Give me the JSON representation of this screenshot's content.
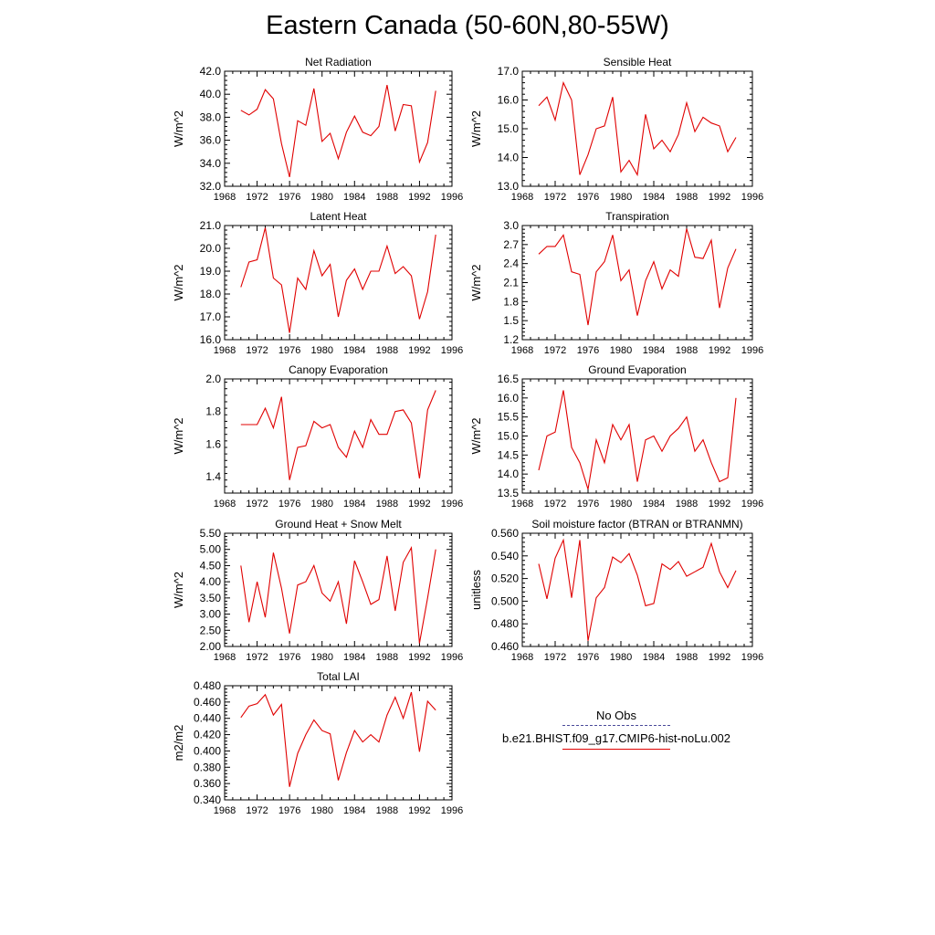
{
  "figure": {
    "title": "Eastern Canada (50-60N,80-55W)"
  },
  "legend": {
    "obs_label": "No Obs",
    "model_label": "b.e21.BHIST.f09_g17.CMIP6-hist-noLu.002",
    "obs_color": "#4a4a9a",
    "model_color": "#e00000"
  },
  "chart_data": [
    {
      "type": "line",
      "title": "Net Radiation",
      "ylabel": "W/m^2",
      "xlim": [
        1968,
        1996
      ],
      "ylim": [
        32,
        42
      ],
      "xticks": [
        "1968",
        "1972",
        "1976",
        "1980",
        "1984",
        "1988",
        "1992",
        "1996"
      ],
      "yticks": [
        "32.0",
        "34.0",
        "36.0",
        "38.0",
        "40.0",
        "42.0"
      ],
      "x": [
        1970,
        1971,
        1972,
        1973,
        1974,
        1975,
        1976,
        1977,
        1978,
        1979,
        1980,
        1981,
        1982,
        1983,
        1984,
        1985,
        1986,
        1987,
        1988,
        1989,
        1990,
        1991,
        1992,
        1993,
        1994
      ],
      "series": [
        {
          "values": [
            38.6,
            38.2,
            38.7,
            40.4,
            39.6,
            35.7,
            32.8,
            37.7,
            37.3,
            40.5,
            35.9,
            36.6,
            34.4,
            36.7,
            38.1,
            36.7,
            36.4,
            37.2,
            40.8,
            36.8,
            39.1,
            39.0,
            34.1,
            35.8,
            40.3
          ]
        }
      ]
    },
    {
      "type": "line",
      "title": "Sensible Heat",
      "ylabel": "W/m^2",
      "xlim": [
        1968,
        1996
      ],
      "ylim": [
        13,
        17
      ],
      "xticks": [
        "1968",
        "1972",
        "1976",
        "1980",
        "1984",
        "1988",
        "1992",
        "1996"
      ],
      "yticks": [
        "13.0",
        "14.0",
        "15.0",
        "16.0",
        "17.0"
      ],
      "x": [
        1970,
        1971,
        1972,
        1973,
        1974,
        1975,
        1976,
        1977,
        1978,
        1979,
        1980,
        1981,
        1982,
        1983,
        1984,
        1985,
        1986,
        1987,
        1988,
        1989,
        1990,
        1991,
        1992,
        1993,
        1994
      ],
      "series": [
        {
          "values": [
            15.8,
            16.1,
            15.3,
            16.6,
            16.0,
            13.4,
            14.1,
            15.0,
            15.1,
            16.1,
            13.5,
            13.9,
            13.4,
            15.5,
            14.3,
            14.6,
            14.2,
            14.8,
            15.9,
            14.9,
            15.4,
            15.2,
            15.1,
            14.2,
            14.7
          ]
        }
      ]
    },
    {
      "type": "line",
      "title": "Latent Heat",
      "ylabel": "W/m^2",
      "xlim": [
        1968,
        1996
      ],
      "ylim": [
        16,
        21
      ],
      "xticks": [
        "1968",
        "1972",
        "1976",
        "1980",
        "1984",
        "1988",
        "1992",
        "1996"
      ],
      "yticks": [
        "16.0",
        "17.0",
        "18.0",
        "19.0",
        "20.0",
        "21.0"
      ],
      "x": [
        1970,
        1971,
        1972,
        1973,
        1974,
        1975,
        1976,
        1977,
        1978,
        1979,
        1980,
        1981,
        1982,
        1983,
        1984,
        1985,
        1986,
        1987,
        1988,
        1989,
        1990,
        1991,
        1992,
        1993,
        1994
      ],
      "series": [
        {
          "values": [
            18.3,
            19.4,
            19.5,
            20.9,
            18.7,
            18.4,
            16.3,
            18.7,
            18.2,
            19.9,
            18.8,
            19.3,
            17.0,
            18.6,
            19.1,
            18.2,
            19.0,
            19.0,
            20.1,
            18.9,
            19.2,
            18.8,
            16.9,
            18.1,
            20.6
          ]
        }
      ]
    },
    {
      "type": "line",
      "title": "Transpiration",
      "ylabel": "W/m^2",
      "xlim": [
        1968,
        1996
      ],
      "ylim": [
        1.2,
        3.0
      ],
      "xticks": [
        "1968",
        "1972",
        "1976",
        "1980",
        "1984",
        "1988",
        "1992",
        "1996"
      ],
      "yticks": [
        "1.2",
        "1.5",
        "1.8",
        "2.1",
        "2.4",
        "2.7",
        "3.0"
      ],
      "x": [
        1970,
        1971,
        1972,
        1973,
        1974,
        1975,
        1976,
        1977,
        1978,
        1979,
        1980,
        1981,
        1982,
        1983,
        1984,
        1985,
        1986,
        1987,
        1988,
        1989,
        1990,
        1991,
        1992,
        1993,
        1994
      ],
      "series": [
        {
          "values": [
            2.55,
            2.67,
            2.67,
            2.85,
            2.27,
            2.23,
            1.43,
            2.27,
            2.43,
            2.85,
            2.13,
            2.3,
            1.58,
            2.13,
            2.43,
            2.0,
            2.3,
            2.2,
            2.95,
            2.5,
            2.48,
            2.77,
            1.7,
            2.33,
            2.63
          ]
        }
      ]
    },
    {
      "type": "line",
      "title": "Canopy Evaporation",
      "ylabel": "W/m^2",
      "xlim": [
        1968,
        1996
      ],
      "ylim": [
        1.3,
        2.0
      ],
      "xticks": [
        "1968",
        "1972",
        "1976",
        "1980",
        "1984",
        "1988",
        "1992",
        "1996"
      ],
      "yticks": [
        "1.4",
        "1.6",
        "1.8",
        "2.0"
      ],
      "x": [
        1970,
        1971,
        1972,
        1973,
        1974,
        1975,
        1976,
        1977,
        1978,
        1979,
        1980,
        1981,
        1982,
        1983,
        1984,
        1985,
        1986,
        1987,
        1988,
        1989,
        1990,
        1991,
        1992,
        1993,
        1994
      ],
      "series": [
        {
          "values": [
            1.72,
            1.72,
            1.72,
            1.82,
            1.7,
            1.89,
            1.38,
            1.58,
            1.59,
            1.74,
            1.7,
            1.72,
            1.58,
            1.52,
            1.68,
            1.58,
            1.75,
            1.66,
            1.66,
            1.8,
            1.81,
            1.73,
            1.39,
            1.81,
            1.93
          ]
        }
      ]
    },
    {
      "type": "line",
      "title": "Ground Evaporation",
      "ylabel": "W/m^2",
      "xlim": [
        1968,
        1996
      ],
      "ylim": [
        13.5,
        16.5
      ],
      "xticks": [
        "1968",
        "1972",
        "1976",
        "1980",
        "1984",
        "1988",
        "1992",
        "1996"
      ],
      "yticks": [
        "13.5",
        "14.0",
        "14.5",
        "15.0",
        "15.5",
        "16.0",
        "16.5"
      ],
      "x": [
        1970,
        1971,
        1972,
        1973,
        1974,
        1975,
        1976,
        1977,
        1978,
        1979,
        1980,
        1981,
        1982,
        1983,
        1984,
        1985,
        1986,
        1987,
        1988,
        1989,
        1990,
        1991,
        1992,
        1993,
        1994
      ],
      "series": [
        {
          "values": [
            14.1,
            15.0,
            15.1,
            16.2,
            14.7,
            14.3,
            13.6,
            14.9,
            14.3,
            15.3,
            14.9,
            15.3,
            13.8,
            14.9,
            15.0,
            14.6,
            15.0,
            15.2,
            15.5,
            14.6,
            14.9,
            14.3,
            13.8,
            13.9,
            16.0
          ]
        }
      ]
    },
    {
      "type": "line",
      "title": "Ground Heat + Snow Melt",
      "ylabel": "W/m^2",
      "xlim": [
        1968,
        1996
      ],
      "ylim": [
        2.0,
        5.5
      ],
      "xticks": [
        "1968",
        "1972",
        "1976",
        "1980",
        "1984",
        "1988",
        "1992",
        "1996"
      ],
      "yticks": [
        "2.00",
        "2.50",
        "3.00",
        "3.50",
        "4.00",
        "4.50",
        "5.00",
        "5.50"
      ],
      "x": [
        1970,
        1971,
        1972,
        1973,
        1974,
        1975,
        1976,
        1977,
        1978,
        1979,
        1980,
        1981,
        1982,
        1983,
        1984,
        1985,
        1986,
        1987,
        1988,
        1989,
        1990,
        1991,
        1992,
        1993,
        1994
      ],
      "series": [
        {
          "values": [
            4.5,
            2.75,
            4.0,
            2.9,
            4.9,
            3.8,
            2.4,
            3.9,
            4.0,
            4.5,
            3.65,
            3.4,
            4.0,
            2.7,
            4.65,
            4.0,
            3.3,
            3.45,
            4.8,
            3.1,
            4.6,
            5.05,
            2.1,
            3.5,
            5.0
          ]
        }
      ]
    },
    {
      "type": "line",
      "title": "Soil moisture factor (BTRAN or BTRANMN)",
      "ylabel": "unitless",
      "xlim": [
        1968,
        1996
      ],
      "ylim": [
        0.46,
        0.56
      ],
      "xticks": [
        "1968",
        "1972",
        "1976",
        "1980",
        "1984",
        "1988",
        "1992",
        "1996"
      ],
      "yticks": [
        "0.460",
        "0.480",
        "0.500",
        "0.520",
        "0.540",
        "0.560"
      ],
      "x": [
        1970,
        1971,
        1972,
        1973,
        1974,
        1975,
        1976,
        1977,
        1978,
        1979,
        1980,
        1981,
        1982,
        1983,
        1984,
        1985,
        1986,
        1987,
        1988,
        1989,
        1990,
        1991,
        1992,
        1993,
        1994
      ],
      "series": [
        {
          "values": [
            0.533,
            0.502,
            0.538,
            0.554,
            0.503,
            0.554,
            0.465,
            0.503,
            0.512,
            0.539,
            0.534,
            0.542,
            0.523,
            0.496,
            0.498,
            0.533,
            0.528,
            0.535,
            0.522,
            0.526,
            0.53,
            0.551,
            0.526,
            0.512,
            0.527
          ]
        }
      ]
    },
    {
      "type": "line",
      "title": "Total LAI",
      "ylabel": "m2/m2",
      "xlim": [
        1968,
        1996
      ],
      "ylim": [
        0.34,
        0.48
      ],
      "xticks": [
        "1968",
        "1972",
        "1976",
        "1980",
        "1984",
        "1988",
        "1992",
        "1996"
      ],
      "yticks": [
        "0.340",
        "0.360",
        "0.380",
        "0.400",
        "0.420",
        "0.440",
        "0.460",
        "0.480"
      ],
      "x": [
        1970,
        1971,
        1972,
        1973,
        1974,
        1975,
        1976,
        1977,
        1978,
        1979,
        1980,
        1981,
        1982,
        1983,
        1984,
        1985,
        1986,
        1987,
        1988,
        1989,
        1990,
        1991,
        1992,
        1993,
        1994
      ],
      "series": [
        {
          "values": [
            0.441,
            0.455,
            0.458,
            0.469,
            0.444,
            0.457,
            0.356,
            0.397,
            0.42,
            0.438,
            0.425,
            0.421,
            0.364,
            0.398,
            0.425,
            0.411,
            0.42,
            0.411,
            0.444,
            0.466,
            0.44,
            0.472,
            0.399,
            0.461,
            0.45
          ]
        }
      ]
    }
  ]
}
